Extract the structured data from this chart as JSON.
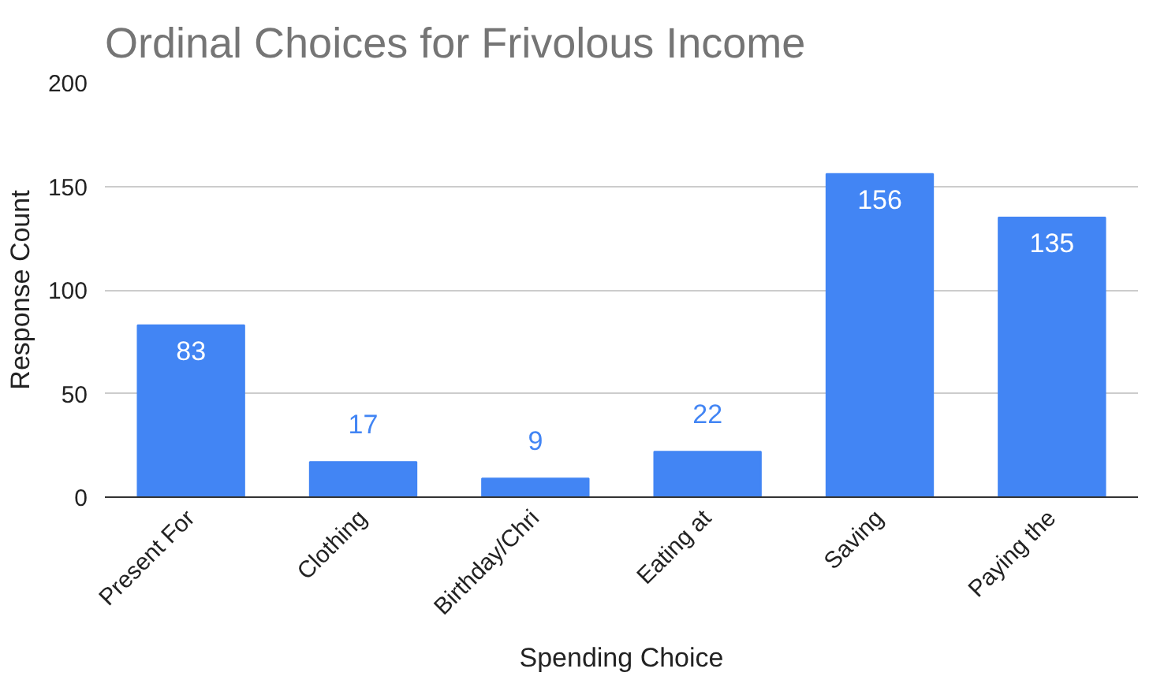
{
  "chart_data": {
    "type": "bar",
    "title": "Ordinal Choices for Frivolous Income",
    "xlabel": "Spending Choice",
    "ylabel": "Response Count",
    "categories": [
      "Present For",
      "Clothing",
      "Birthday/Chri",
      "Eating at",
      "Saving",
      "Paying the"
    ],
    "values": [
      83,
      17,
      9,
      22,
      156,
      135
    ],
    "color": "#4285f4",
    "ylim": [
      0,
      200
    ],
    "yticks": [
      0,
      50,
      100,
      150,
      200
    ],
    "grid": "y",
    "data_labels": true
  }
}
